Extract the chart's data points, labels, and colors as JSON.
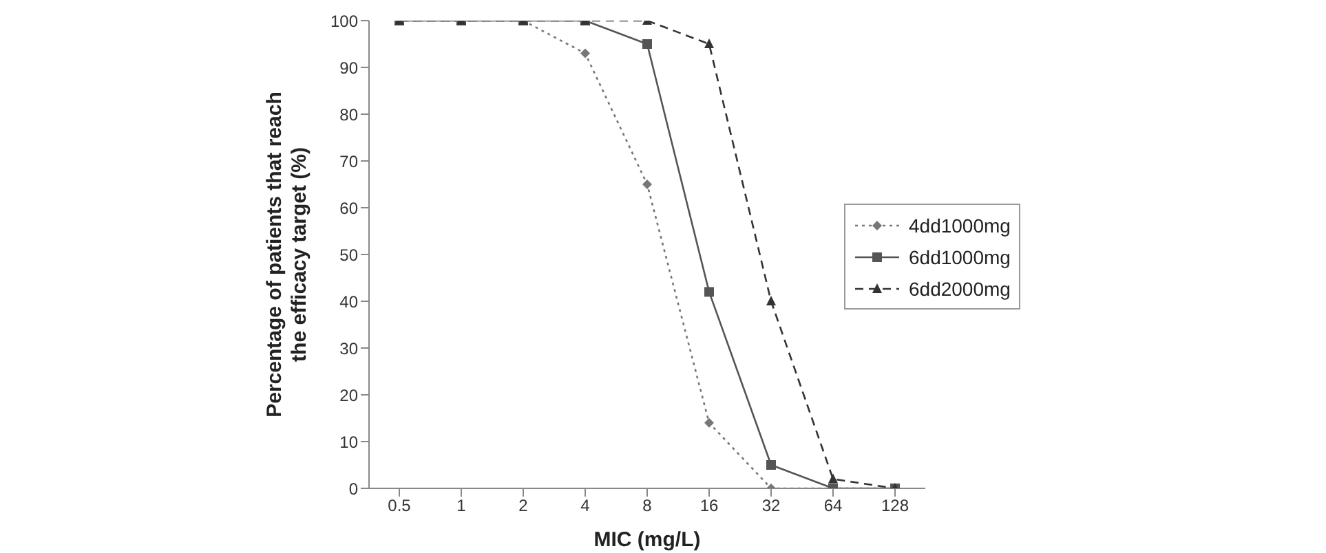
{
  "chart_data": {
    "type": "line",
    "xlabel": "MIC (mg/L)",
    "ylabel": "Percentage of patients that reach the efficacy target (%)",
    "categories": [
      "0.5",
      "1",
      "2",
      "4",
      "8",
      "16",
      "32",
      "64",
      "128"
    ],
    "series": [
      {
        "name": "4dd1000mg",
        "color": "#777777",
        "marker": "diamond",
        "line_style": "dotted",
        "values": [
          100,
          100,
          100,
          93,
          65,
          14,
          0,
          0,
          0
        ]
      },
      {
        "name": "6dd1000mg",
        "color": "#555555",
        "marker": "square",
        "line_style": "solid",
        "values": [
          100,
          100,
          100,
          100,
          95,
          42,
          5,
          0,
          0
        ]
      },
      {
        "name": "6dd2000mg",
        "color": "#333333",
        "marker": "triangle",
        "line_style": "dashed",
        "values": [
          100,
          100,
          100,
          100,
          100,
          95,
          40,
          2,
          0
        ]
      }
    ],
    "ylim": [
      0,
      100
    ],
    "yticks": [
      0,
      10,
      20,
      30,
      40,
      50,
      60,
      70,
      80,
      90,
      100
    ],
    "grid": false,
    "legend": "right"
  }
}
